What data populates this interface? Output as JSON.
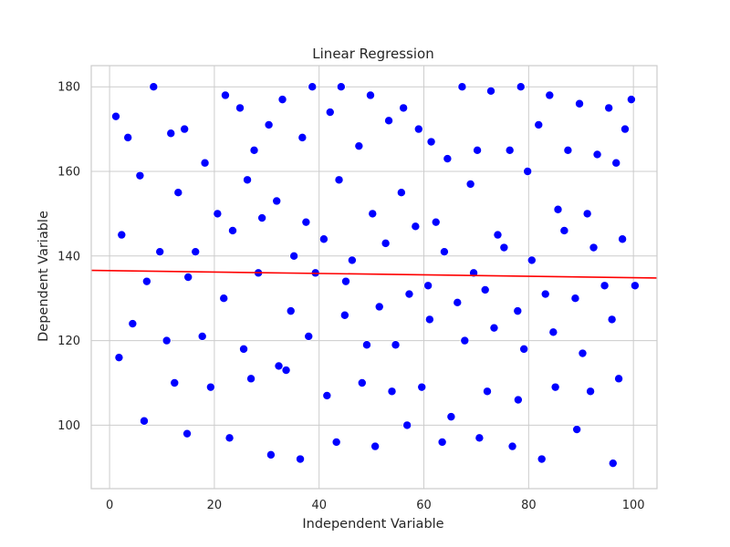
{
  "chart_data": {
    "type": "scatter",
    "title": "Linear Regression",
    "xlabel": "Independent Variable",
    "ylabel": "Dependent Variable",
    "xlim": [
      -3.5,
      104.5
    ],
    "ylim": [
      85,
      185
    ],
    "xticks": [
      0,
      20,
      40,
      60,
      80,
      100
    ],
    "yticks": [
      100,
      120,
      140,
      160,
      180
    ],
    "grid": true,
    "point_color": "#0000ff",
    "regression": {
      "color": "#ff0000",
      "x": [
        -3.5,
        104.5
      ],
      "y": [
        136.6,
        134.8
      ]
    },
    "points": {
      "x": [
        1.2,
        8.4,
        14.3,
        22.1,
        27.6,
        33.0,
        38.7,
        44.2,
        49.8,
        56.1,
        61.4,
        67.3,
        72.8,
        78.5,
        84.0,
        89.7,
        95.3,
        99.6,
        3.5,
        11.7,
        18.2,
        24.9,
        30.4,
        36.8,
        42.1,
        47.6,
        53.3,
        59.0,
        64.5,
        70.2,
        76.4,
        81.9,
        87.5,
        93.1,
        98.4,
        5.8,
        13.1,
        20.6,
        26.3,
        31.9,
        37.5,
        43.8,
        50.2,
        55.7,
        62.3,
        68.9,
        74.1,
        79.8,
        85.6,
        91.2,
        96.7,
        2.3,
        9.6,
        16.4,
        23.5,
        29.1,
        35.2,
        40.9,
        46.3,
        52.7,
        58.4,
        63.9,
        69.5,
        75.3,
        80.6,
        86.8,
        92.4,
        97.9,
        7.1,
        15.0,
        21.8,
        28.4,
        34.6,
        39.3,
        45.1,
        51.5,
        57.2,
        60.8,
        66.4,
        71.7,
        77.9,
        83.2,
        88.9,
        94.5,
        100.3,
        4.4,
        10.9,
        17.7,
        25.6,
        32.3,
        38.0,
        44.9,
        49.1,
        54.6,
        61.1,
        67.8,
        73.4,
        79.1,
        84.7,
        90.3,
        95.9,
        1.8,
        12.4,
        19.3,
        27.0,
        33.7,
        41.5,
        48.2,
        53.9,
        59.6,
        65.2,
        72.1,
        78.0,
        85.1,
        91.8,
        97.2,
        6.6,
        14.8,
        22.9,
        30.8,
        36.4,
        43.3,
        50.7,
        56.8,
        63.5,
        70.6,
        76.9,
        82.5,
        89.2,
        96.1
      ],
      "y": [
        173,
        180,
        170,
        178,
        165,
        177,
        180,
        180,
        178,
        175,
        167,
        180,
        179,
        180,
        178,
        176,
        175,
        177,
        168,
        169,
        162,
        175,
        171,
        168,
        174,
        166,
        172,
        170,
        163,
        165,
        165,
        171,
        165,
        164,
        170,
        159,
        155,
        150,
        158,
        153,
        148,
        158,
        150,
        155,
        148,
        157,
        145,
        160,
        151,
        150,
        162,
        145,
        141,
        141,
        146,
        149,
        140,
        144,
        139,
        143,
        147,
        141,
        136,
        142,
        139,
        146,
        142,
        144,
        134,
        135,
        130,
        136,
        127,
        136,
        134,
        128,
        131,
        133,
        129,
        132,
        127,
        131,
        130,
        133,
        133,
        124,
        120,
        121,
        118,
        114,
        121,
        126,
        119,
        119,
        125,
        120,
        123,
        118,
        122,
        117,
        125,
        116,
        110,
        109,
        111,
        113,
        107,
        110,
        108,
        109,
        102,
        108,
        106,
        109,
        108,
        111,
        101,
        98,
        97,
        93,
        92,
        96,
        95,
        100,
        96,
        97,
        95,
        92,
        99,
        91
      ]
    }
  }
}
